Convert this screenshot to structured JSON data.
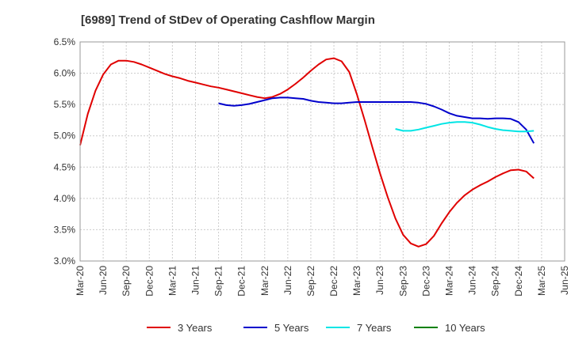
{
  "chart_data": {
    "type": "line",
    "title": "[6989]  Trend of StDev of Operating Cashflow Margin",
    "xlabel": "",
    "ylabel": "",
    "x_ticks": [
      "Mar-20",
      "Jun-20",
      "Sep-20",
      "Dec-20",
      "Mar-21",
      "Jun-21",
      "Sep-21",
      "Dec-21",
      "Mar-22",
      "Jun-22",
      "Sep-22",
      "Dec-22",
      "Mar-23",
      "Jun-23",
      "Sep-23",
      "Dec-23",
      "Mar-24",
      "Jun-24",
      "Sep-24",
      "Dec-24",
      "Mar-25",
      "Jun-25"
    ],
    "y_ticks": [
      "3.0%",
      "3.5%",
      "4.0%",
      "4.5%",
      "5.0%",
      "5.5%",
      "6.0%",
      "6.5%"
    ],
    "ylim": [
      3.0,
      6.5
    ],
    "grid": true,
    "legend_position": "bottom",
    "series": [
      {
        "name": "3 Years",
        "color": "#e00000",
        "values": [
          4.85,
          5.35,
          5.72,
          5.98,
          6.14,
          6.2,
          6.2,
          6.18,
          6.14,
          6.09,
          6.04,
          5.99,
          5.95,
          5.92,
          5.88,
          5.85,
          5.82,
          5.79,
          5.77,
          5.74,
          5.71,
          5.68,
          5.65,
          5.62,
          5.6,
          5.62,
          5.67,
          5.74,
          5.83,
          5.93,
          6.04,
          6.14,
          6.22,
          6.24,
          6.19,
          6.02,
          5.66,
          5.25,
          4.82,
          4.4,
          4.02,
          3.68,
          3.42,
          3.28,
          3.23,
          3.27,
          3.4,
          3.6,
          3.78,
          3.93,
          4.05,
          4.14,
          4.21,
          4.27,
          4.34,
          4.4,
          4.45,
          4.46,
          4.43,
          4.32
        ]
      },
      {
        "name": "5 Years",
        "color": "#0000cc",
        "values": [
          null,
          null,
          null,
          null,
          null,
          null,
          null,
          null,
          null,
          null,
          null,
          null,
          null,
          null,
          null,
          null,
          null,
          null,
          5.52,
          5.49,
          5.48,
          5.49,
          5.51,
          5.54,
          5.57,
          5.6,
          5.61,
          5.61,
          5.6,
          5.59,
          5.56,
          5.54,
          5.53,
          5.52,
          5.52,
          5.53,
          5.54,
          5.54,
          5.54,
          5.54,
          5.54,
          5.54,
          5.54,
          5.54,
          5.53,
          5.51,
          5.47,
          5.42,
          5.36,
          5.32,
          5.3,
          5.28,
          5.28,
          5.27,
          5.28,
          5.28,
          5.27,
          5.22,
          5.1,
          4.88
        ]
      },
      {
        "name": "7 Years",
        "color": "#00e5e5",
        "values": [
          null,
          null,
          null,
          null,
          null,
          null,
          null,
          null,
          null,
          null,
          null,
          null,
          null,
          null,
          null,
          null,
          null,
          null,
          null,
          null,
          null,
          null,
          null,
          null,
          null,
          null,
          null,
          null,
          null,
          null,
          null,
          null,
          null,
          null,
          null,
          null,
          null,
          null,
          null,
          null,
          null,
          5.11,
          5.08,
          5.08,
          5.1,
          5.13,
          5.16,
          5.19,
          5.21,
          5.22,
          5.22,
          5.21,
          5.18,
          5.14,
          5.11,
          5.09,
          5.08,
          5.07,
          5.07,
          5.08
        ]
      },
      {
        "name": "10 Years",
        "color": "#008000",
        "values": []
      }
    ]
  }
}
